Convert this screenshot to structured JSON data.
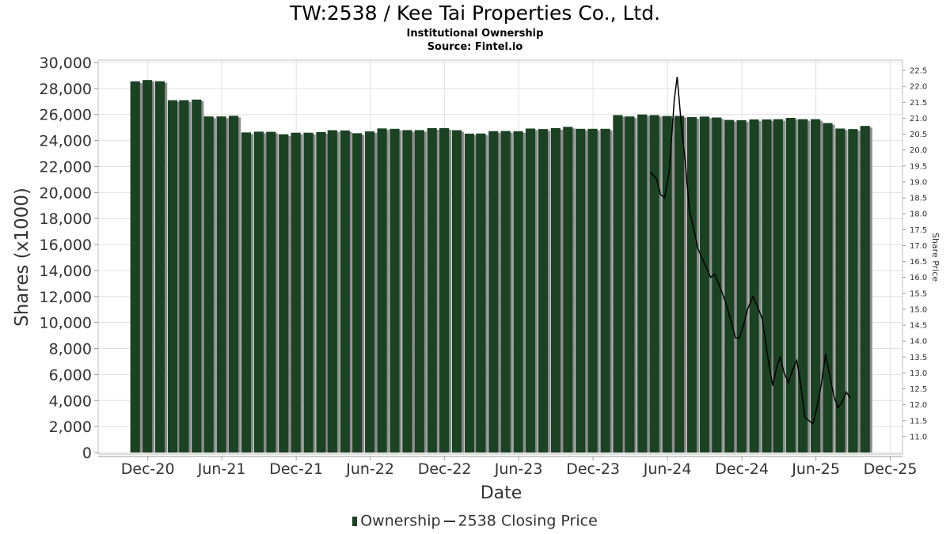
{
  "title": "TW:2538 / Kee Tai Properties Co., Ltd.",
  "subtitle": "Institutional Ownership",
  "source": "Source: Fintel.io",
  "legend": {
    "ownership": "Ownership",
    "price": "2538 Closing Price"
  },
  "colors": {
    "bar": "#1a4223",
    "bar_shadow": "#8c8c8c",
    "price_line": "#000000",
    "grid": "#e0e0e0"
  },
  "chart_data": {
    "type": "bar",
    "xlabel": "Date",
    "ylabel": "Shares (x1000)",
    "y2label": "Share Price",
    "ylim": [
      0,
      30000
    ],
    "y2lim": [
      10.5,
      22.75
    ],
    "yticks": [
      0,
      2000,
      4000,
      6000,
      8000,
      10000,
      12000,
      14000,
      16000,
      18000,
      20000,
      22000,
      24000,
      26000,
      28000,
      30000
    ],
    "yticklabels": [
      "0",
      "2,000",
      "4,000",
      "6,000",
      "8,000",
      "10,000",
      "12,000",
      "14,000",
      "16,000",
      "18,000",
      "20,000",
      "22,000",
      "24,000",
      "26,000",
      "28,000",
      "30,000"
    ],
    "y2ticks": [
      11.0,
      11.5,
      12.0,
      12.5,
      13.0,
      13.5,
      14.0,
      14.5,
      15.0,
      15.5,
      16.0,
      16.5,
      17.0,
      17.5,
      18.0,
      18.5,
      19.0,
      19.5,
      20.0,
      20.5,
      21.0,
      21.5,
      22.0,
      22.5
    ],
    "y2ticklabels": [
      "11.0",
      "11.5",
      "12.0",
      "12.5",
      "13.0",
      "13.5",
      "14.0",
      "14.5",
      "15.0",
      "15.5",
      "16.0",
      "16.5",
      "17.0",
      "17.5",
      "18.0",
      "18.5",
      "19.0",
      "19.5",
      "20.0",
      "20.5",
      "21.0",
      "21.5",
      "22.0",
      "22.5"
    ],
    "xrange": [
      "2020-08-01",
      "2025-12-31"
    ],
    "xticks": [
      "2020-12-01",
      "2021-06-01",
      "2021-12-01",
      "2022-06-01",
      "2022-12-01",
      "2023-06-01",
      "2023-12-01",
      "2024-06-01",
      "2024-12-01",
      "2025-06-01",
      "2025-12-01"
    ],
    "xticklabels": [
      "Dec-20",
      "Jun-21",
      "Dec-21",
      "Jun-22",
      "Dec-22",
      "Jun-23",
      "Dec-23",
      "Jun-24",
      "Dec-24",
      "Jun-25",
      "Dec-25"
    ],
    "grid": true,
    "legend_position": "bottom-center",
    "series": [
      {
        "name": "Ownership",
        "type": "bar",
        "x": [
          "2020-10-31",
          "2020-11-30",
          "2020-12-31",
          "2021-01-31",
          "2021-02-28",
          "2021-03-31",
          "2021-04-30",
          "2021-05-31",
          "2021-06-30",
          "2021-07-31",
          "2021-08-31",
          "2021-09-30",
          "2021-10-31",
          "2021-11-30",
          "2021-12-31",
          "2022-01-31",
          "2022-02-28",
          "2022-03-31",
          "2022-04-30",
          "2022-05-31",
          "2022-06-30",
          "2022-07-31",
          "2022-08-31",
          "2022-09-30",
          "2022-10-31",
          "2022-11-30",
          "2022-12-31",
          "2023-01-31",
          "2023-02-28",
          "2023-03-31",
          "2023-04-30",
          "2023-05-31",
          "2023-06-30",
          "2023-07-31",
          "2023-08-31",
          "2023-09-30",
          "2023-10-31",
          "2023-11-30",
          "2023-12-31",
          "2024-01-31",
          "2024-02-29",
          "2024-03-31",
          "2024-04-30",
          "2024-05-31",
          "2024-06-30",
          "2024-07-31",
          "2024-08-31",
          "2024-09-30",
          "2024-10-31",
          "2024-11-30",
          "2024-12-31",
          "2025-01-31",
          "2025-02-28",
          "2025-03-31",
          "2025-04-30",
          "2025-05-31",
          "2025-06-30",
          "2025-07-31",
          "2025-08-31",
          "2025-09-30"
        ],
        "values": [
          28550,
          28650,
          28560,
          27100,
          27100,
          27150,
          25850,
          25850,
          25900,
          24620,
          24680,
          24670,
          24480,
          24600,
          24600,
          24650,
          24790,
          24770,
          24560,
          24700,
          24930,
          24900,
          24800,
          24800,
          24950,
          24950,
          24790,
          24530,
          24540,
          24720,
          24730,
          24710,
          24920,
          24880,
          24950,
          25050,
          24900,
          24900,
          24900,
          25950,
          25850,
          26000,
          25950,
          25880,
          25890,
          25800,
          25840,
          25770,
          25580,
          25560,
          25620,
          25620,
          25640,
          25740,
          25640,
          25640,
          25340,
          24920,
          24880,
          25120
        ]
      },
      {
        "name": "2538 Closing Price",
        "type": "line",
        "x": [
          "2024-04-20",
          "2024-04-28",
          "2024-05-05",
          "2024-05-15",
          "2024-05-25",
          "2024-06-05",
          "2024-06-18",
          "2024-06-25",
          "2024-07-05",
          "2024-07-15",
          "2024-07-25",
          "2024-08-05",
          "2024-08-15",
          "2024-08-25",
          "2024-09-05",
          "2024-09-15",
          "2024-09-25",
          "2024-10-05",
          "2024-10-20",
          "2024-11-05",
          "2024-11-15",
          "2024-11-25",
          "2024-12-05",
          "2024-12-15",
          "2024-12-28",
          "2025-01-08",
          "2025-01-20",
          "2025-01-28",
          "2025-02-05",
          "2025-02-15",
          "2025-02-25",
          "2025-03-05",
          "2025-03-15",
          "2025-03-25",
          "2025-04-05",
          "2025-04-15",
          "2025-04-25",
          "2025-05-05",
          "2025-05-15",
          "2025-05-25",
          "2025-06-05",
          "2025-06-15",
          "2025-06-25",
          "2025-07-05",
          "2025-07-15",
          "2025-07-25",
          "2025-08-05",
          "2025-08-15",
          "2025-08-25"
        ],
        "values": [
          19.3,
          19.2,
          19.1,
          18.6,
          18.5,
          19.3,
          21.6,
          22.3,
          20.8,
          19.6,
          18.1,
          17.5,
          16.9,
          16.6,
          16.3,
          16.0,
          16.1,
          15.8,
          15.3,
          14.6,
          14.1,
          14.1,
          14.5,
          15.0,
          15.4,
          15.1,
          14.7,
          14.0,
          13.3,
          12.6,
          13.2,
          13.5,
          13.0,
          12.7,
          13.1,
          13.4,
          12.6,
          11.6,
          11.5,
          11.4,
          12.0,
          12.7,
          13.6,
          12.9,
          12.3,
          11.9,
          12.1,
          12.4,
          12.2
        ]
      }
    ]
  }
}
